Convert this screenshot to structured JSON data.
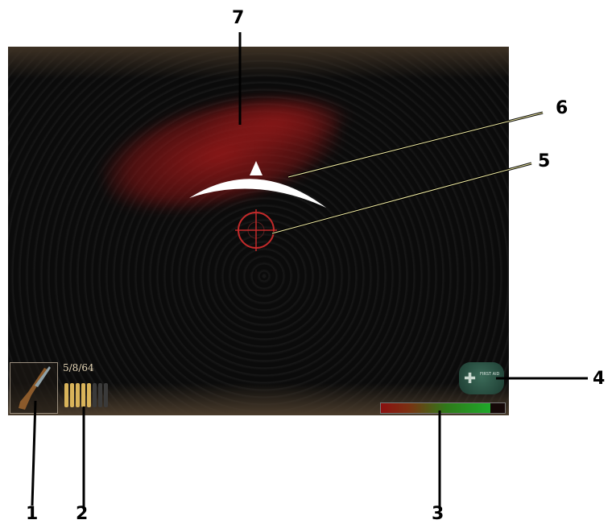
{
  "hud": {
    "ammo_text": "5/8/64",
    "weapon_icon": "rifle-icon",
    "medkit_icon": "medkit-cross-icon",
    "medkit_label": "FIRST AID",
    "health_fraction": 0.88,
    "loaded_rounds": 5,
    "rounds_per_clip": 8
  },
  "callouts": {
    "one": "1",
    "two": "2",
    "three": "3",
    "four": "4",
    "five": "5",
    "six": "6",
    "seven": "7"
  },
  "colors": {
    "blood": "#a01919",
    "health_high": "#1fa82a",
    "health_low": "#8a1010",
    "crosshair": "#c22a2a",
    "ammo_text": "#e8d8b8"
  }
}
